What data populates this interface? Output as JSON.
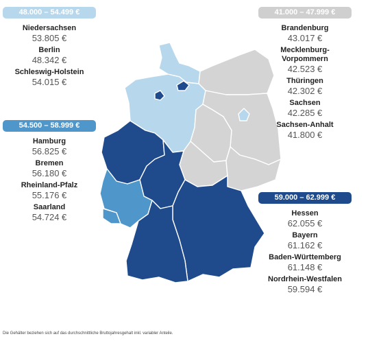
{
  "groups": [
    {
      "range": "48.000 – 54.499 €",
      "color": "#b7d7ec",
      "items": [
        {
          "name": "Niedersachsen",
          "value": "53.805 €"
        },
        {
          "name": "Berlin",
          "value": "48.342 €"
        },
        {
          "name": "Schleswig-Holstein",
          "value": "54.015 €"
        }
      ]
    },
    {
      "range": "41.000 – 47.999 €",
      "color": "#cfcfcf",
      "items": [
        {
          "name": "Brandenburg",
          "value": "43.017 €"
        },
        {
          "name": "Mecklenburg-Vorpommern",
          "value": "42.523 €"
        },
        {
          "name": "Thüringen",
          "value": "42.302 €"
        },
        {
          "name": "Sachsen",
          "value": "42.285 €"
        },
        {
          "name": "Sachsen-Anhalt",
          "value": "41.800 €"
        }
      ]
    },
    {
      "range": "54.500 – 58.999 €",
      "color": "#4f96cb",
      "items": [
        {
          "name": "Hamburg",
          "value": "56.825 €"
        },
        {
          "name": "Bremen",
          "value": "56.180 €"
        },
        {
          "name": "Rheinland-Pfalz",
          "value": "55.176 €"
        },
        {
          "name": "Saarland",
          "value": "54.724 €"
        }
      ]
    },
    {
      "range": "59.000 – 62.999 €",
      "color": "#1f4b8d",
      "items": [
        {
          "name": "Hessen",
          "value": "62.055 €"
        },
        {
          "name": "Bayern",
          "value": "61.162 €"
        },
        {
          "name": "Baden-Württemberg",
          "value": "61.148 €"
        },
        {
          "name": "Nordrhein-Westfalen",
          "value": "59.594 €"
        }
      ]
    }
  ],
  "footnote": "Die Gehälter beziehen sich auf das durchschnittliche Bruttojahresgehalt inkl. variabler Anteile."
}
